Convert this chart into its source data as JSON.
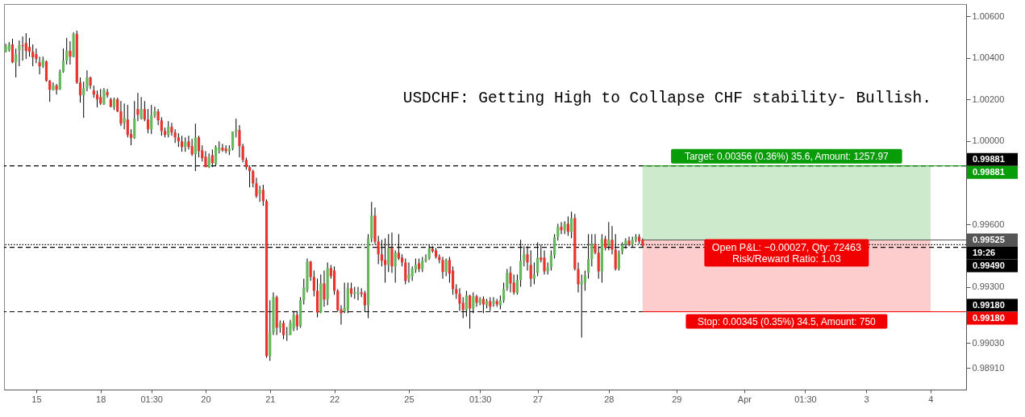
{
  "chart_data": {
    "type": "candlestick",
    "title": "USDCHF: Getting High to Collapse CHF stability- Bullish.",
    "categories": [
      null,
      null,
      null,
      null,
      null,
      null,
      null,
      null,
      null,
      "15",
      null,
      null,
      null,
      null,
      null,
      null,
      null,
      null,
      null,
      null,
      null,
      null,
      null,
      null,
      null,
      null,
      null,
      null,
      "18",
      null,
      null,
      null,
      null,
      null,
      null,
      null,
      null,
      null,
      null,
      null,
      null,
      null,
      null,
      "01:30",
      null,
      null,
      null,
      null,
      null,
      null,
      null,
      null,
      null,
      null,
      null,
      null,
      null,
      null,
      null,
      "20",
      null,
      null,
      null,
      null,
      null,
      null,
      null,
      null,
      null,
      null,
      null,
      null,
      null,
      null,
      null,
      null,
      null,
      null,
      "21",
      null,
      null,
      null,
      null,
      null,
      null,
      null,
      null,
      null,
      null,
      null,
      null,
      null,
      null,
      null,
      null,
      null,
      null,
      "22",
      null,
      null,
      null,
      null,
      null,
      null,
      null,
      null,
      null,
      null,
      null,
      null,
      null,
      null,
      null,
      null,
      null,
      null,
      null,
      null,
      null,
      "25",
      null,
      null,
      null,
      null,
      null,
      null,
      null,
      null,
      null,
      null,
      null,
      null,
      null,
      null,
      null,
      null,
      null,
      null,
      null,
      null,
      "01:30",
      null,
      null,
      null,
      null,
      null,
      null,
      null,
      null,
      null,
      null,
      null,
      null,
      null,
      null,
      null,
      null,
      "27",
      null,
      null,
      null,
      null,
      null,
      null,
      null,
      null,
      null,
      null,
      null,
      null,
      null,
      null,
      null,
      null,
      null,
      null,
      null,
      null,
      "28",
      null,
      null,
      null,
      null,
      null,
      null,
      null,
      null,
      null,
      null,
      null,
      null,
      null,
      null,
      null,
      null,
      null,
      null,
      null,
      "29",
      null,
      null,
      null,
      null,
      null,
      null,
      null,
      null,
      null,
      null,
      null,
      null,
      null,
      null,
      null,
      null,
      null,
      null,
      null,
      "Apr",
      null,
      null,
      null,
      null,
      null,
      null,
      null,
      null,
      null,
      null,
      null,
      null,
      null,
      null,
      null,
      null,
      null,
      "01:30",
      null,
      null,
      null,
      null,
      null,
      null,
      null,
      null,
      null,
      null,
      null,
      null,
      null,
      null,
      null,
      null,
      null,
      "3",
      null,
      null,
      null,
      null,
      null,
      null,
      null,
      null,
      null,
      null,
      null,
      null,
      null,
      null,
      null,
      null,
      null,
      null,
      "4",
      null,
      null,
      null,
      null,
      null,
      null,
      null,
      null,
      null,
      null
    ],
    "ohlc": [
      [
        1.0043,
        1.00468,
        1.00426,
        1.00457
      ],
      [
        1.00437,
        1.00476,
        1.0043,
        1.00465
      ],
      [
        1.00465,
        1.00492,
        1.00375,
        1.00379
      ],
      [
        1.00379,
        1.00445,
        1.00306,
        1.00418
      ],
      [
        1.00437,
        1.00484,
        1.0036,
        1.00461
      ],
      [
        1.00461,
        1.00503,
        1.00387,
        1.00457
      ],
      [
        1.00472,
        1.00519,
        1.00395,
        1.00434
      ],
      [
        1.00453,
        1.00496,
        1.00406,
        1.0043
      ],
      [
        1.0043,
        1.00465,
        1.0036,
        1.00403
      ],
      [
        1.00418,
        1.00445,
        1.00375,
        1.00395
      ],
      [
        1.00379,
        1.00406,
        1.00321,
        1.0036
      ],
      [
        1.0036,
        1.00406,
        1.00352,
        1.00391
      ],
      [
        1.00383,
        1.00387,
        1.00286,
        1.0029
      ],
      [
        1.0029,
        1.00294,
        1.00189,
        1.00247
      ],
      [
        1.00247,
        1.00282,
        1.00243,
        1.00267
      ],
      [
        1.00267,
        1.00275,
        1.00224,
        1.00247
      ],
      [
        1.00247,
        1.00344,
        1.00247,
        1.00333
      ],
      [
        1.00333,
        1.00445,
        1.00329,
        1.00387
      ],
      [
        1.00387,
        1.00496,
        1.00368,
        1.00434
      ],
      [
        1.00434,
        1.0048,
        1.00368,
        1.00406
      ],
      [
        1.00406,
        1.00523,
        1.00403,
        1.00515
      ],
      [
        1.00515,
        1.00531,
        1.00275,
        1.00282
      ],
      [
        1.00282,
        1.00306,
        1.00185,
        1.0022
      ],
      [
        1.0022,
        1.00286,
        1.00112,
        1.00255
      ],
      [
        1.00255,
        1.0034,
        1.0024,
        1.00306
      ],
      [
        1.00306,
        1.0031,
        1.00251,
        1.00267
      ],
      [
        1.00243,
        1.00267,
        1.00209,
        1.00224
      ],
      [
        1.00224,
        1.00243,
        1.00162,
        1.00201
      ],
      [
        1.00212,
        1.00251,
        1.00174,
        1.00181
      ],
      [
        1.00177,
        1.00255,
        1.00174,
        1.00247
      ],
      [
        1.00236,
        1.00251,
        1.00209,
        1.0022
      ],
      [
        1.00201,
        1.00209,
        1.00162,
        1.00166
      ],
      [
        1.00162,
        1.00209,
        1.0015,
        1.00201
      ],
      [
        1.00201,
        1.00209,
        1.00139,
        1.00143
      ],
      [
        1.00143,
        1.00193,
        1.00073,
        1.00084
      ],
      [
        1.00088,
        1.00181,
        1.00057,
        1.00112
      ],
      [
        1.00104,
        1.00174,
        1.00018,
        1.0003
      ],
      [
        1.00034,
        1.00057,
        0.9998,
        1.00015
      ],
      [
        1.00015,
        1.00193,
        1.00011,
        1.00108
      ],
      [
        1.00154,
        1.00232,
        1.00096,
        1.00127
      ],
      [
        1.00108,
        1.00212,
        1.00104,
        1.00154
      ],
      [
        1.00154,
        1.00193,
        1.00096,
        1.00104
      ],
      [
        1.00104,
        1.00154,
        1.00038,
        1.00057
      ],
      [
        1.00057,
        1.00174,
        1.00034,
        1.00123
      ],
      [
        1.00123,
        1.00166,
        1.00112,
        1.00143
      ],
      [
        1.00143,
        1.00154,
        1.00077,
        1.001
      ],
      [
        1.001,
        1.00115,
        1.00026,
        1.00049
      ],
      [
        1.00049,
        1.00065,
        1.00018,
        1.0003
      ],
      [
        1.0003,
        1.00096,
        1.00018,
        1.00069
      ],
      [
        1.00069,
        1.00088,
        1.00026,
        1.00042
      ],
      [
        1.00042,
        1.00057,
        0.99991,
        1.00018
      ],
      [
        1.00018,
        1.00038,
        0.99972,
        0.99999
      ],
      [
        0.99999,
        1.00026,
        0.99949,
        0.99972
      ],
      [
        0.99972,
        1.00018,
        0.99949,
        0.99995
      ],
      [
        0.99999,
        1.00026,
        0.9996,
        0.99972
      ],
      [
        0.99976,
        1.00011,
        0.99929,
        0.99937
      ],
      [
        0.99937,
        1.00084,
        0.99856,
        1.00018
      ],
      [
        1.00018,
        1.00026,
        0.99922,
        0.99952
      ],
      [
        0.99956,
        0.9998,
        0.99902,
        0.99918
      ],
      [
        0.99925,
        0.99952,
        0.99875,
        0.99875
      ],
      [
        0.99875,
        0.99941,
        0.99871,
        0.99921
      ],
      [
        0.99933,
        0.9996,
        0.99875,
        0.99894
      ],
      [
        0.9989,
        0.9998,
        0.99883,
        0.99972
      ],
      [
        0.99956,
        0.99999,
        0.99941,
        0.99968
      ],
      [
        0.99968,
        0.99987,
        0.99949,
        0.99956
      ],
      [
        0.99964,
        0.9998,
        0.99941,
        0.99952
      ],
      [
        0.99952,
        0.9998,
        0.99933,
        0.99964
      ],
      [
        0.99964,
        1.00046,
        0.99956,
        1.00046
      ],
      [
        1.00046,
        1.00108,
        1.00018,
        1.00053
      ],
      [
        1.00053,
        1.00077,
        0.99922,
        0.99976
      ],
      [
        0.99976,
        0.99987,
        0.99898,
        0.9991
      ],
      [
        0.9991,
        0.99921,
        0.99863,
        0.99875
      ],
      [
        0.99875,
        0.99883,
        0.99778,
        0.99856
      ],
      [
        0.99856,
        0.99863,
        0.99778,
        0.99797
      ],
      [
        0.99797,
        0.99824,
        0.99727,
        0.99735
      ],
      [
        0.99747,
        0.99786,
        0.99708,
        0.99766
      ],
      [
        0.99766,
        0.9979,
        0.99689,
        0.99712
      ],
      [
        0.99712,
        0.9972,
        0.98959,
        0.98967
      ],
      [
        0.98967,
        0.99235,
        0.98944,
        0.9908
      ],
      [
        0.9908,
        0.99273,
        0.99068,
        0.9925
      ],
      [
        0.9925,
        0.99258,
        0.99068,
        0.99103
      ],
      [
        0.99103,
        0.99138,
        0.9908,
        0.99126
      ],
      [
        0.99126,
        0.99138,
        0.99048,
        0.99068
      ],
      [
        0.99068,
        0.99107,
        0.9904,
        0.99072
      ],
      [
        0.99068,
        0.99141,
        0.99068,
        0.99126
      ],
      [
        0.99099,
        0.99184,
        0.99087,
        0.99165
      ],
      [
        0.99165,
        0.99184,
        0.99091,
        0.9911
      ],
      [
        0.9911,
        0.9925,
        0.99103,
        0.99235
      ],
      [
        0.99235,
        0.99339,
        0.99215,
        0.99297
      ],
      [
        0.99285,
        0.99436,
        0.99273,
        0.99421
      ],
      [
        0.99421,
        0.99425,
        0.99328,
        0.99347
      ],
      [
        0.99347,
        0.99378,
        0.99254,
        0.99281
      ],
      [
        0.99281,
        0.99339,
        0.99153,
        0.99176
      ],
      [
        0.99176,
        0.99359,
        0.99173,
        0.99316
      ],
      [
        0.99316,
        0.99378,
        0.99204,
        0.99239
      ],
      [
        0.99239,
        0.99417,
        0.99211,
        0.9939
      ],
      [
        0.9939,
        0.99405,
        0.99339,
        0.99351
      ],
      [
        0.99378,
        0.99398,
        0.99262,
        0.99281
      ],
      [
        0.99281,
        0.99289,
        0.9918,
        0.99188
      ],
      [
        0.99192,
        0.99211,
        0.99118,
        0.99173
      ],
      [
        0.9918,
        0.9932,
        0.99173,
        0.992
      ],
      [
        0.99192,
        0.9932,
        0.99173,
        0.99293
      ],
      [
        0.99293,
        0.9932,
        0.9925,
        0.99266
      ],
      [
        0.99266,
        0.993,
        0.99242,
        0.99273
      ],
      [
        0.99266,
        0.993,
        0.99235,
        0.99273
      ],
      [
        0.99273,
        0.99293,
        0.9925,
        0.99266
      ],
      [
        0.9927,
        0.99281,
        0.9918,
        0.99211
      ],
      [
        0.99211,
        0.99553,
        0.99149,
        0.99533
      ],
      [
        0.99533,
        0.99708,
        0.99514,
        0.99642
      ],
      [
        0.99642,
        0.99681,
        0.99506,
        0.99518
      ],
      [
        0.99518,
        0.99545,
        0.99409,
        0.99456
      ],
      [
        0.99456,
        0.99526,
        0.99398,
        0.99425
      ],
      [
        0.99429,
        0.99533,
        0.9932,
        0.99405
      ],
      [
        0.99405,
        0.99553,
        0.99371,
        0.99487
      ],
      [
        0.99487,
        0.99561,
        0.99367,
        0.99398
      ],
      [
        0.99398,
        0.99475,
        0.9932,
        0.99464
      ],
      [
        0.99464,
        0.99553,
        0.99429,
        0.99436
      ],
      [
        0.9944,
        0.99456,
        0.99398,
        0.99417
      ],
      [
        0.99417,
        0.99436,
        0.99312,
        0.99328
      ],
      [
        0.99339,
        0.99417,
        0.9932,
        0.99359
      ],
      [
        0.99351,
        0.99398,
        0.99328,
        0.99386
      ],
      [
        0.99382,
        0.99436,
        0.99367,
        0.99405
      ],
      [
        0.99413,
        0.99436,
        0.99371,
        0.99386
      ],
      [
        0.99386,
        0.99444,
        0.99371,
        0.99425
      ],
      [
        0.99425,
        0.99456,
        0.99417,
        0.99436
      ],
      [
        0.99436,
        0.99502,
        0.99429,
        0.99483
      ],
      [
        0.99483,
        0.99495,
        0.99464,
        0.99471
      ],
      [
        0.99475,
        0.99487,
        0.99436,
        0.99444
      ],
      [
        0.99444,
        0.99456,
        0.99413,
        0.99429
      ],
      [
        0.99429,
        0.99444,
        0.99339,
        0.99371
      ],
      [
        0.99371,
        0.99436,
        0.99351,
        0.99429
      ],
      [
        0.99429,
        0.99444,
        0.9932,
        0.99363
      ],
      [
        0.99378,
        0.99398,
        0.99262,
        0.99289
      ],
      [
        0.99289,
        0.99312,
        0.99242,
        0.99266
      ],
      [
        0.99266,
        0.99293,
        0.99184,
        0.99219
      ],
      [
        0.99223,
        0.9925,
        0.99149,
        0.99188
      ],
      [
        0.99188,
        0.99281,
        0.99157,
        0.99258
      ],
      [
        0.99258,
        0.99262,
        0.99099,
        0.99196
      ],
      [
        0.99196,
        0.99273,
        0.99173,
        0.99254
      ],
      [
        0.99254,
        0.99262,
        0.99204,
        0.99223
      ],
      [
        0.99223,
        0.9925,
        0.99211,
        0.99242
      ],
      [
        0.99242,
        0.99254,
        0.99173,
        0.99215
      ],
      [
        0.99211,
        0.99242,
        0.99196,
        0.99231
      ],
      [
        0.99231,
        0.9925,
        0.99184,
        0.99204
      ],
      [
        0.99219,
        0.9925,
        0.99204,
        0.99231
      ],
      [
        0.99231,
        0.99242,
        0.99204,
        0.99215
      ],
      [
        0.99211,
        0.99258,
        0.99192,
        0.99235
      ],
      [
        0.99235,
        0.9932,
        0.99223,
        0.99289
      ],
      [
        0.99293,
        0.99386,
        0.99281,
        0.99367
      ],
      [
        0.99367,
        0.99398,
        0.99273,
        0.99316
      ],
      [
        0.9932,
        0.99359,
        0.99262,
        0.99273
      ],
      [
        0.9927,
        0.99359,
        0.99262,
        0.99332
      ],
      [
        0.99332,
        0.99526,
        0.993,
        0.99425
      ],
      [
        0.99425,
        0.99495,
        0.99398,
        0.99456
      ],
      [
        0.99456,
        0.99495,
        0.99378,
        0.99417
      ],
      [
        0.99405,
        0.99475,
        0.993,
        0.99339
      ],
      [
        0.99339,
        0.99417,
        0.99312,
        0.99359
      ],
      [
        0.99367,
        0.99514,
        0.99351,
        0.9944
      ],
      [
        0.9944,
        0.99502,
        0.99417,
        0.99429
      ],
      [
        0.9944,
        0.99475,
        0.99359,
        0.99374
      ],
      [
        0.99374,
        0.99417,
        0.99359,
        0.99394
      ],
      [
        0.99394,
        0.99475,
        0.99378,
        0.99452
      ],
      [
        0.99452,
        0.99553,
        0.99436,
        0.99537
      ],
      [
        0.99541,
        0.99603,
        0.99522,
        0.99588
      ],
      [
        0.99588,
        0.99611,
        0.99553,
        0.99572
      ],
      [
        0.99572,
        0.99615,
        0.99553,
        0.99603
      ],
      [
        0.99603,
        0.99638,
        0.99545,
        0.99564
      ],
      [
        0.99564,
        0.99661,
        0.99533,
        0.9963
      ],
      [
        0.9963,
        0.9965,
        0.99378,
        0.99386
      ],
      [
        0.99386,
        0.99417,
        0.99273,
        0.99312
      ],
      [
        0.99312,
        0.99359,
        0.99056,
        0.99324
      ],
      [
        0.9932,
        0.99378,
        0.99281,
        0.99355
      ],
      [
        0.99367,
        0.99553,
        0.99339,
        0.99433
      ],
      [
        0.99433,
        0.99553,
        0.99398,
        0.99506
      ],
      [
        0.99506,
        0.99553,
        0.99456,
        0.99464
      ],
      [
        0.99464,
        0.99495,
        0.99339,
        0.99374
      ],
      [
        0.99374,
        0.99553,
        0.9932,
        0.9953
      ],
      [
        0.9953,
        0.99545,
        0.99475,
        0.99487
      ],
      [
        0.99495,
        0.99611,
        0.99475,
        0.99526
      ],
      [
        0.99526,
        0.99592,
        0.99456,
        0.99479
      ],
      [
        0.99479,
        0.99553,
        0.99378,
        0.99386
      ],
      [
        0.99386,
        0.99475,
        0.99378,
        0.99464
      ],
      [
        0.99471,
        0.99514,
        0.99456,
        0.99502
      ],
      [
        0.99502,
        0.99533,
        0.99483,
        0.99522
      ],
      [
        0.99522,
        0.99541,
        0.99495,
        0.99502
      ],
      [
        0.99502,
        0.99541,
        0.99491,
        0.99526
      ],
      [
        0.99526,
        0.99553,
        0.99514,
        0.99541
      ],
      [
        0.99541,
        0.99553,
        0.99506,
        0.99518
      ],
      [
        0.99526,
        0.99533,
        0.99491,
        0.99498
      ],
      null,
      null,
      null,
      null,
      null,
      null,
      null,
      null,
      null,
      null,
      null,
      null,
      null,
      null,
      null,
      null,
      null,
      null,
      null,
      null,
      null,
      null,
      null,
      null,
      null,
      null,
      null,
      null,
      null,
      null,
      null,
      null,
      null,
      null,
      null,
      null,
      null,
      null,
      null,
      null,
      null,
      null,
      null,
      null,
      null,
      null,
      null,
      null,
      null,
      null,
      null,
      null,
      null,
      null,
      null,
      null,
      null,
      null,
      null,
      null,
      null,
      null,
      null,
      null,
      null,
      null,
      null,
      null,
      null,
      null,
      null,
      null,
      null,
      null,
      null,
      null,
      null,
      null,
      null,
      null,
      null,
      null,
      null,
      null,
      null,
      null,
      null,
      null,
      null,
      null,
      null,
      null,
      null,
      null,
      null
    ],
    "colors": [
      "#66b85c",
      "#66b85c",
      "#e8332e",
      "#66b85c",
      "#66b85c",
      "#e8332e",
      "#e8332e",
      "#e8332e",
      "#e8332e",
      "#e8332e",
      "#e8332e",
      "#66b85c",
      "#e8332e",
      "#e8332e",
      "#66b85c",
      "#e8332e",
      "#66b85c",
      "#66b85c",
      "#66b85c",
      "#e8332e",
      "#66b85c",
      "#e8332e",
      "#e8332e",
      "#66b85c",
      "#66b85c",
      "#e8332e",
      "#e8332e",
      "#e8332e",
      "#e8332e",
      "#66b85c",
      "#e8332e",
      "#e8332e",
      "#66b85c",
      "#e8332e",
      "#e8332e",
      "#66b85c",
      "#e8332e",
      "#e8332e",
      "#66b85c",
      "#e8332e",
      "#66b85c",
      "#e8332e",
      "#e8332e",
      "#66b85c",
      "#66b85c",
      "#e8332e",
      "#e8332e",
      "#e8332e",
      "#66b85c",
      "#e8332e",
      "#e8332e",
      "#e8332e",
      "#e8332e",
      "#66b85c",
      "#e8332e",
      "#e8332e",
      "#66b85c",
      "#e8332e",
      "#e8332e",
      "#e8332e",
      "#66b85c",
      "#e8332e",
      "#66b85c",
      "#66b85c",
      "#e8332e",
      "#e8332e",
      "#66b85c",
      "#66b85c",
      "#66b85c",
      "#e8332e",
      "#e8332e",
      "#e8332e",
      "#e8332e",
      "#e8332e",
      "#e8332e",
      "#66b85c",
      "#e8332e",
      "#e8332e",
      "#66b85c",
      "#66b85c",
      "#e8332e",
      "#66b85c",
      "#e8332e",
      "#66b85c",
      "#66b85c",
      "#66b85c",
      "#e8332e",
      "#66b85c",
      "#66b85c",
      "#66b85c",
      "#e8332e",
      "#e8332e",
      "#e8332e",
      "#66b85c",
      "#e8332e",
      "#66b85c",
      "#e8332e",
      "#e8332e",
      "#e8332e",
      "#e8332e",
      "#66b85c",
      "#66b85c",
      "#e8332e",
      "#66b85c",
      "#66b85c",
      "#e8332e",
      "#e8332e",
      "#66b85c",
      "#66b85c",
      "#e8332e",
      "#e8332e",
      "#e8332e",
      "#e8332e",
      "#66b85c",
      "#e8332e",
      "#66b85c",
      "#e8332e",
      "#e8332e",
      "#e8332e",
      "#66b85c",
      "#66b85c",
      "#66b85c",
      "#e8332e",
      "#66b85c",
      "#66b85c",
      "#66b85c",
      "#e8332e",
      "#e8332e",
      "#e8332e",
      "#e8332e",
      "#66b85c",
      "#e8332e",
      "#e8332e",
      "#e8332e",
      "#e8332e",
      "#e8332e",
      "#66b85c",
      "#e8332e",
      "#66b85c",
      "#e8332e",
      "#66b85c",
      "#e8332e",
      "#66b85c",
      "#e8332e",
      "#66b85c",
      "#e8332e",
      "#66b85c",
      "#66b85c",
      "#66b85c",
      "#e8332e",
      "#e8332e",
      "#66b85c",
      "#66b85c",
      "#66b85c",
      "#e8332e",
      "#e8332e",
      "#66b85c",
      "#66b85c",
      "#e8332e",
      "#e8332e",
      "#66b85c",
      "#66b85c",
      "#66b85c",
      "#66b85c",
      "#e8332e",
      "#66b85c",
      "#e8332e",
      "#66b85c",
      "#e8332e",
      "#e8332e",
      "#66b85c",
      "#66b85c",
      "#66b85c",
      "#66b85c",
      "#e8332e",
      "#e8332e",
      "#66b85c",
      "#e8332e",
      "#66b85c",
      "#e8332e",
      "#e8332e",
      "#66b85c",
      "#66b85c",
      "#66b85c",
      "#e8332e",
      "#66b85c",
      "#66b85c",
      "#e8332e",
      "#e8332e",
      null,
      null,
      null,
      null,
      null,
      null,
      null,
      null,
      null,
      null,
      null,
      null,
      null,
      null,
      null,
      null,
      null,
      null,
      null,
      null,
      null,
      null,
      null,
      null,
      null,
      null,
      null,
      null,
      null,
      null,
      null,
      null,
      null,
      null,
      null,
      null,
      null,
      null,
      null,
      null,
      null,
      null,
      null,
      null,
      null,
      null,
      null,
      null,
      null,
      null,
      null,
      null,
      null,
      null,
      null,
      null,
      null,
      null,
      null,
      null,
      null,
      null,
      null,
      null,
      null,
      null,
      null,
      null,
      null,
      null,
      null,
      null,
      null,
      null,
      null,
      null,
      null,
      null,
      null,
      null,
      null,
      null,
      null,
      null,
      null,
      null,
      null,
      null,
      null,
      null,
      null,
      null,
      null,
      null,
      null
    ],
    "ylim": [
      0.98806,
      1.00659
    ],
    "yticks": [
      {
        "value": 1.006,
        "label": "1.00600"
      },
      {
        "value": 1.004,
        "label": "1.00400"
      },
      {
        "value": 1.002,
        "label": "1.00200"
      },
      {
        "value": 1.0,
        "label": "1.00000"
      },
      {
        "value": 0.996,
        "label": "0.99600"
      },
      {
        "value": 0.993,
        "label": "0.99300"
      },
      {
        "value": 0.9903,
        "label": "0.99030"
      },
      {
        "value": 0.9891,
        "label": "0.98910"
      }
    ],
    "ref_lines": [
      {
        "axis": "y",
        "value": 0.99881,
        "label": "0.99881",
        "line_style": "dashed"
      },
      {
        "axis": "y",
        "value": 0.9918,
        "label": "0.99180",
        "line_style": "dashed"
      },
      {
        "axis": "y",
        "value": 0.9949,
        "label": "0.99490",
        "line_style": "dashed"
      },
      {
        "axis": "y",
        "value": 0.99502,
        "line_style": "dotted"
      },
      {
        "axis": "y",
        "value": 0.99881,
        "label": "0.99881",
        "color": "#089c08",
        "line_style": "solid"
      },
      {
        "axis": "y",
        "value": 0.99525,
        "label": "0.99525",
        "color": "#555555",
        "line_style": "solid"
      },
      {
        "axis": "y",
        "value": 0.9918,
        "label": "0.99180",
        "color": "#f20000",
        "line_style": "solid"
      }
    ],
    "bands": [
      {
        "axis": "y",
        "from": 0.99525,
        "to": 0.99881,
        "label": "Target: 0.00356 (0.36%) 35.6, Amount: 1257.97",
        "color": "#cdebcc"
      },
      {
        "axis": "y",
        "from": 0.9918,
        "to": 0.99525,
        "label": "Stop: 0.00345 (0.35%) 34.5, Amount: 750",
        "color": "#fdcccc"
      }
    ],
    "annotations": [
      {
        "text": "Open P&L: −0.00027, Qty: 72463\nRisk/Reward Ratio: 1.03",
        "y": 0.99525
      },
      "19:26"
    ],
    "grid": false
  }
}
